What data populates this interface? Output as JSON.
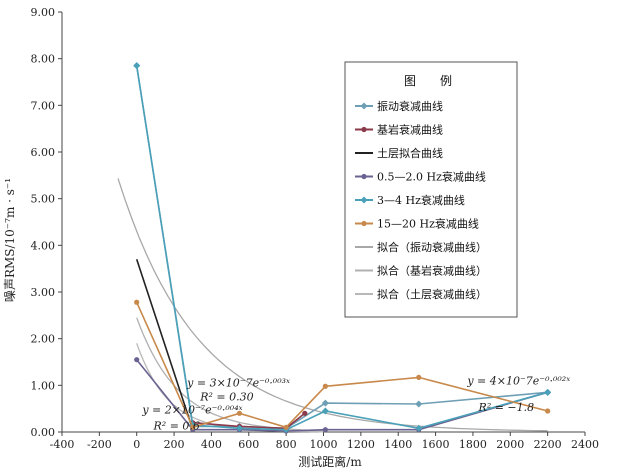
{
  "chart_data": {
    "type": "line",
    "xlabel": "测试距离/m",
    "ylabel": "噪声RMS/10⁻⁷m · s⁻¹",
    "xlim": [
      -400,
      2400
    ],
    "ylim": [
      0,
      9
    ],
    "xticks": [
      -400,
      -200,
      0,
      200,
      400,
      600,
      800,
      1000,
      1200,
      1400,
      1600,
      1800,
      2000,
      2200,
      2400
    ],
    "yticks": [
      0,
      1,
      2,
      3,
      4,
      5,
      6,
      7,
      8,
      9
    ],
    "ytick_labels": [
      "0.00",
      "1.00",
      "2.00",
      "3.00",
      "4.00",
      "5.00",
      "6.00",
      "7.00",
      "8.00",
      "9.00"
    ],
    "legend_title": "图　例",
    "legend_position": "right",
    "series": [
      {
        "name": "振动衰减曲线",
        "color": "#6f9fb5",
        "marker": "diamond",
        "x": [
          0,
          300,
          550,
          800,
          1010,
          1510,
          2200
        ],
        "y": [
          7.85,
          0.12,
          0.12,
          0.08,
          0.62,
          0.6,
          0.85
        ]
      },
      {
        "name": "基岩衰减曲线",
        "color": "#8b3a4a",
        "marker": "circle",
        "x": [
          300,
          550,
          800,
          900
        ],
        "y": [
          0.2,
          0.12,
          0.08,
          0.4
        ]
      },
      {
        "name": "土层拟合曲线",
        "color": "#222222",
        "marker": "none",
        "x": [
          0,
          300
        ],
        "y": [
          3.7,
          0.05
        ]
      },
      {
        "name": "0.5—2.0 Hz衰减曲线",
        "color": "#6a6290",
        "marker": "circle",
        "x": [
          0,
          300,
          550,
          800,
          1010,
          1510,
          2200
        ],
        "y": [
          1.55,
          0.05,
          0.05,
          0.02,
          0.05,
          0.05,
          0.85
        ]
      },
      {
        "name": "3—4 Hz衰减曲线",
        "color": "#4aa0b8",
        "marker": "diamond",
        "x": [
          0,
          300,
          550,
          800,
          1010,
          1510,
          2200
        ],
        "y": [
          7.85,
          0.15,
          0.08,
          0.05,
          0.45,
          0.08,
          0.85
        ]
      },
      {
        "name": "15—20 Hz衰减曲线",
        "color": "#c8894a",
        "marker": "circle",
        "x": [
          0,
          300,
          550,
          800,
          1010,
          1510,
          2200
        ],
        "y": [
          2.78,
          0.1,
          0.4,
          0.1,
          0.98,
          1.17,
          0.45
        ]
      },
      {
        "name": "拟合（振动衰减曲线）",
        "color": "#a8a8a8",
        "marker": "none",
        "fit": "exp",
        "A": 4.3,
        "k": -0.00234,
        "x_range": [
          -100,
          2200
        ]
      },
      {
        "name": "拟合（基岩衰减曲线）",
        "color": "#b0b0b0",
        "marker": "none",
        "fit": "exp",
        "A": 2.45,
        "k": -0.0045,
        "x_range": [
          0,
          1000
        ]
      },
      {
        "name": "拟合（土层衰减曲线）",
        "color": "#b8b8b8",
        "marker": "none",
        "fit": "exp",
        "A": 1.9,
        "k": -0.006,
        "x_range": [
          0,
          1000
        ]
      }
    ],
    "annotations": [
      {
        "text": "y = 3×10⁻7e⁻⁰·⁰⁰³ˣ",
        "x": 270,
        "y": 0.98
      },
      {
        "text": "R² = 0.30",
        "x": 340,
        "y": 0.68
      },
      {
        "text": "y = 2×10⁻⁷e⁻⁰·⁰⁰⁴ˣ",
        "x": 30,
        "y": 0.4
      },
      {
        "text": "R² = 0.6",
        "x": 90,
        "y": 0.05
      },
      {
        "text": "y = 4×10⁻7e⁻⁰·⁰⁰²ˣ",
        "x": 1770,
        "y": 1.02
      },
      {
        "text": "R² = −1.8",
        "x": 1830,
        "y": 0.45
      }
    ]
  }
}
